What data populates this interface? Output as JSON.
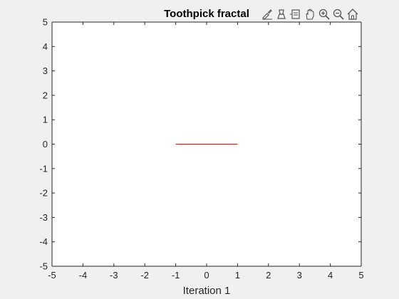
{
  "toolbar": {
    "icons": [
      "brush-icon",
      "data-cursor-icon",
      "data-tips-icon",
      "pan-hand-icon",
      "zoom-in-icon",
      "zoom-out-icon",
      "home-icon"
    ]
  },
  "chart_data": {
    "type": "line",
    "title": "Toothpick fractal",
    "xlabel": "Iteration 1",
    "ylabel": "",
    "xlim": [
      -5,
      5
    ],
    "ylim": [
      -5,
      5
    ],
    "xticks": [
      -5,
      -4,
      -3,
      -2,
      -1,
      0,
      1,
      2,
      3,
      4,
      5
    ],
    "yticks": [
      -5,
      -4,
      -3,
      -2,
      -1,
      0,
      1,
      2,
      3,
      4,
      5
    ],
    "grid": false,
    "series": [
      {
        "x": [
          -1,
          1
        ],
        "y": [
          0,
          0
        ],
        "color": "#ff0000"
      }
    ]
  }
}
